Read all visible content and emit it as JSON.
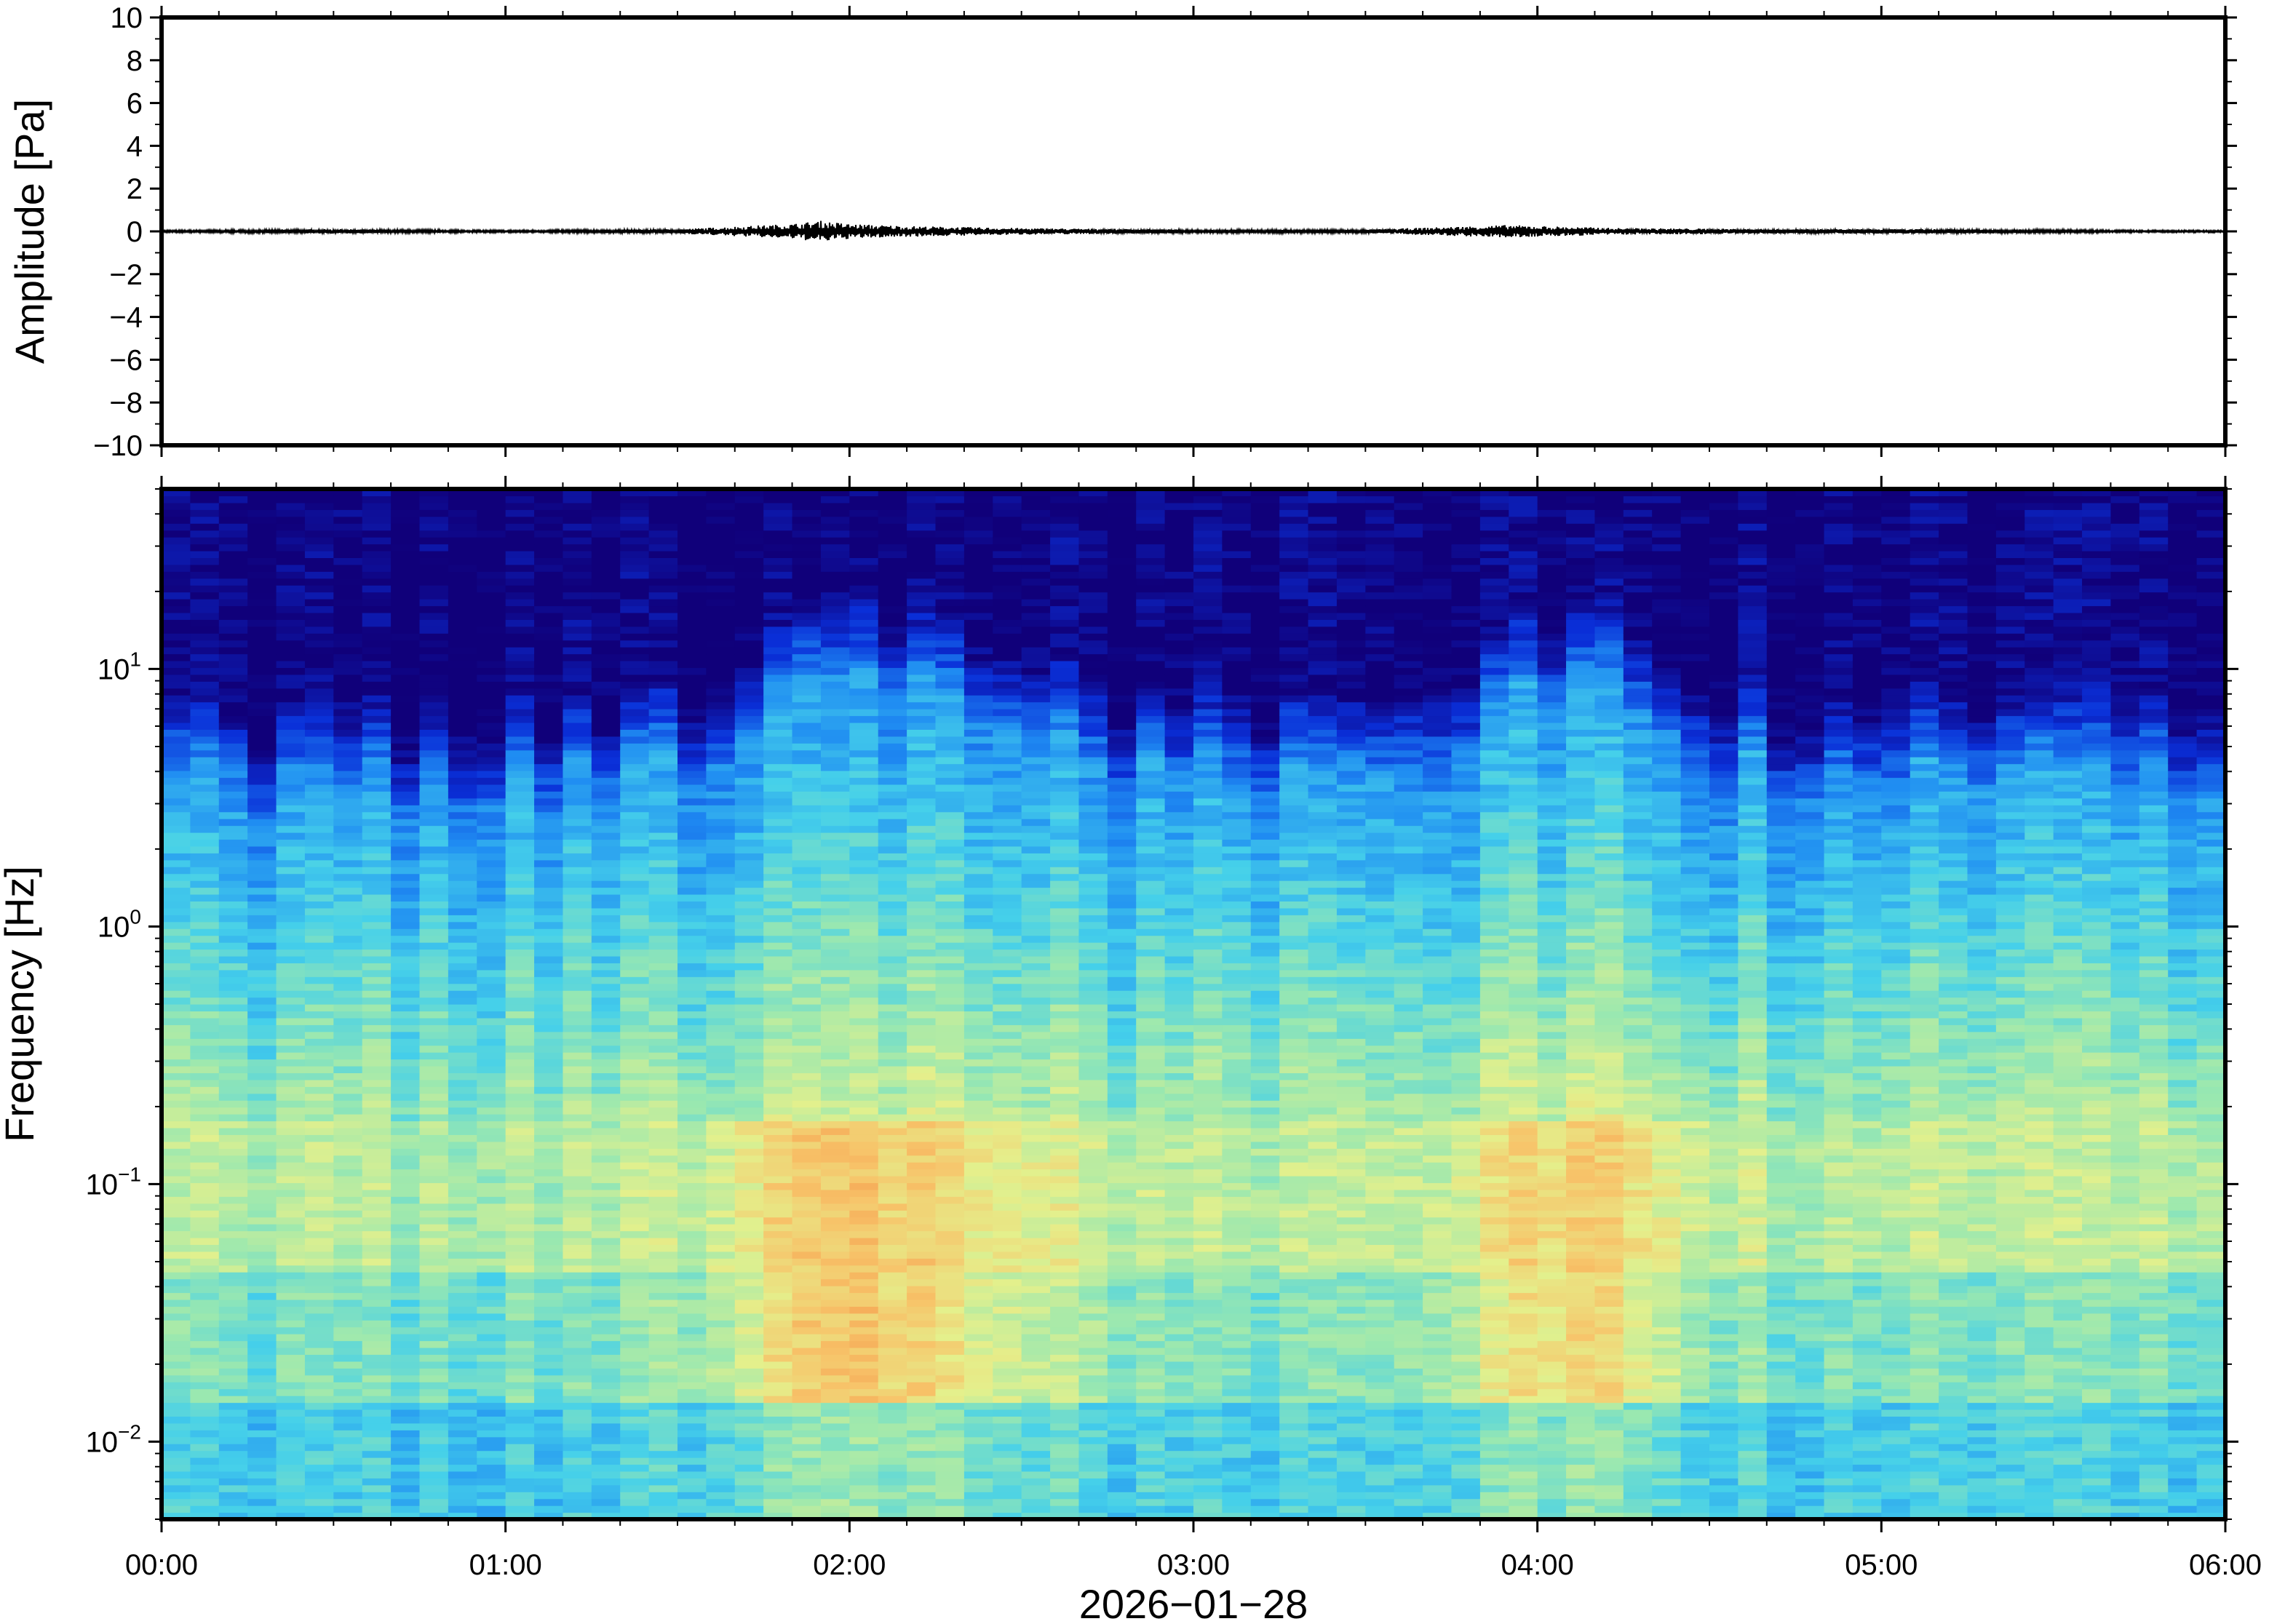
{
  "chart_data": [
    {
      "type": "line",
      "ylabel": "Amplitude [Pa]",
      "ylim": [
        -10,
        10
      ],
      "y_ticks": [
        10,
        8,
        6,
        4,
        2,
        0,
        -2,
        -4,
        -6,
        -8,
        -10
      ],
      "y_tick_labels": [
        "10",
        "8",
        "6",
        "4",
        "2",
        "0",
        "−2",
        "−4",
        "−6",
        "−8",
        "−10"
      ],
      "xlim": [
        "00:00",
        "06:00"
      ],
      "grid": false,
      "series": [
        {
          "color": "#000000",
          "x": [
            "00:00",
            "00:30",
            "01:00",
            "01:30",
            "01:50",
            "01:55",
            "02:00",
            "02:10",
            "02:30",
            "03:00",
            "03:30",
            "03:55",
            "04:00",
            "04:15",
            "04:45",
            "05:15",
            "05:45",
            "06:00"
          ],
          "y": [
            0.05,
            0.1,
            0.05,
            0.1,
            0.35,
            0.5,
            0.35,
            0.25,
            0.15,
            0.08,
            0.08,
            0.3,
            0.25,
            0.15,
            0.1,
            0.1,
            0.05,
            0.05
          ]
        }
      ]
    },
    {
      "type": "heatmap",
      "xlabel": "2026−01−28",
      "ylabel": "Frequency [Hz]",
      "x_tick_labels": [
        "00:00",
        "01:00",
        "02:00",
        "03:00",
        "04:00",
        "05:00",
        "06:00"
      ],
      "x_ticks_hours": [
        0,
        1,
        2,
        3,
        4,
        5,
        6
      ],
      "xlim_hours": [
        0,
        6
      ],
      "y_scale": "log",
      "ylim": [
        0.005,
        50
      ],
      "y_ticks": [
        0.01,
        0.1,
        1,
        10
      ],
      "y_tick_labels": [
        {
          "base": "10",
          "exp": "−2"
        },
        {
          "base": "10",
          "exp": "−1"
        },
        {
          "base": "10",
          "exp": "0"
        },
        {
          "base": "10",
          "exp": "1"
        }
      ],
      "colormap": [
        "#10007a",
        "#0a2fd8",
        "#1f8cf2",
        "#45d0ea",
        "#9ae8b0",
        "#e4f08c",
        "#f7c46a",
        "#f4843c"
      ],
      "grid": false
    }
  ]
}
